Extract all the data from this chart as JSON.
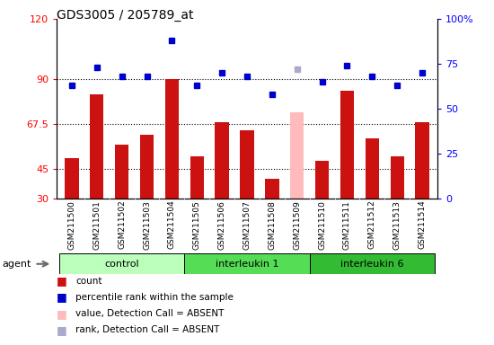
{
  "title": "GDS3005 / 205789_at",
  "samples": [
    "GSM211500",
    "GSM211501",
    "GSM211502",
    "GSM211503",
    "GSM211504",
    "GSM211505",
    "GSM211506",
    "GSM211507",
    "GSM211508",
    "GSM211509",
    "GSM211510",
    "GSM211511",
    "GSM211512",
    "GSM211513",
    "GSM211514"
  ],
  "bar_values": [
    50,
    82,
    57,
    62,
    90,
    51,
    68,
    64,
    40,
    73,
    49,
    84,
    60,
    51,
    68
  ],
  "bar_absent": [
    false,
    false,
    false,
    false,
    false,
    false,
    false,
    false,
    false,
    true,
    false,
    false,
    false,
    false,
    false
  ],
  "rank_values": [
    63,
    73,
    68,
    68,
    88,
    63,
    70,
    68,
    58,
    72,
    65,
    74,
    68,
    63,
    70
  ],
  "rank_absent": [
    false,
    false,
    false,
    false,
    false,
    false,
    false,
    false,
    false,
    true,
    false,
    false,
    false,
    false,
    false
  ],
  "groups": [
    {
      "label": "control",
      "start": 0,
      "end": 4,
      "color": "#bbffbb"
    },
    {
      "label": "interleukin 1",
      "start": 5,
      "end": 9,
      "color": "#55dd55"
    },
    {
      "label": "interleukin 6",
      "start": 10,
      "end": 14,
      "color": "#33bb33"
    }
  ],
  "bar_color_present": "#cc1111",
  "bar_color_absent": "#ffbbbb",
  "rank_color_present": "#0000cc",
  "rank_color_absent": "#aaaacc",
  "ylim_left": [
    30,
    120
  ],
  "ylim_right": [
    0,
    100
  ],
  "yticks_left": [
    30,
    45,
    67.5,
    90,
    120
  ],
  "ytick_labels_left": [
    "30",
    "45",
    "67.5",
    "90",
    "120"
  ],
  "yticks_right": [
    0,
    25,
    50,
    75,
    100
  ],
  "ytick_labels_right": [
    "0",
    "25",
    "50",
    "75",
    "100%"
  ],
  "hlines": [
    45,
    67.5,
    90
  ],
  "legend_items": [
    {
      "color": "#cc1111",
      "label": "count"
    },
    {
      "color": "#0000cc",
      "label": "percentile rank within the sample"
    },
    {
      "color": "#ffbbbb",
      "label": "value, Detection Call = ABSENT"
    },
    {
      "color": "#aaaacc",
      "label": "rank, Detection Call = ABSENT"
    }
  ]
}
